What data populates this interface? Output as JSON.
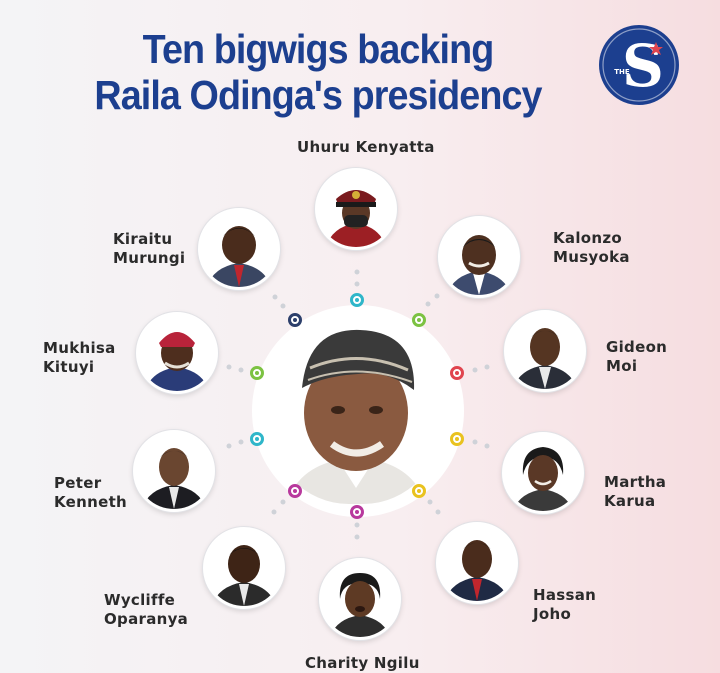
{
  "headline": {
    "line1": "Ten bigwigs backing",
    "line2": "Raila Odinga's presidency"
  },
  "logo": {
    "letter": "S",
    "small_text": "THE",
    "color": "#1c3f8f"
  },
  "people": [
    {
      "id": "uhuru",
      "line1": "Uhuru Kenyatta",
      "line2": ""
    },
    {
      "id": "kalonzo",
      "line1": "Kalonzo",
      "line2": "Musyoka"
    },
    {
      "id": "gideon",
      "line1": "Gideon",
      "line2": "Moi"
    },
    {
      "id": "martha",
      "line1": "Martha",
      "line2": "Karua"
    },
    {
      "id": "hassan",
      "line1": "Hassan",
      "line2": "Joho"
    },
    {
      "id": "charity",
      "line1": "Charity Ngilu",
      "line2": ""
    },
    {
      "id": "wycliffe",
      "line1": "Wycliffe",
      "line2": "Oparanya"
    },
    {
      "id": "peter",
      "line1": "Peter",
      "line2": "Kenneth"
    },
    {
      "id": "mukhisa",
      "line1": "Mukhisa",
      "line2": "Kituyi"
    },
    {
      "id": "kiraitu",
      "line1": "Kiraitu",
      "line2": "Murungi"
    }
  ],
  "colors": {
    "title": "#1c3f8f",
    "name_text": "#2b2b2b",
    "dot_cyan": "#2fb6c9",
    "dot_green": "#7cc242",
    "dot_red": "#e0454f",
    "dot_yellow": "#e9c21f",
    "dot_magenta": "#b8399d",
    "dot_navy": "#2c3f6b"
  }
}
